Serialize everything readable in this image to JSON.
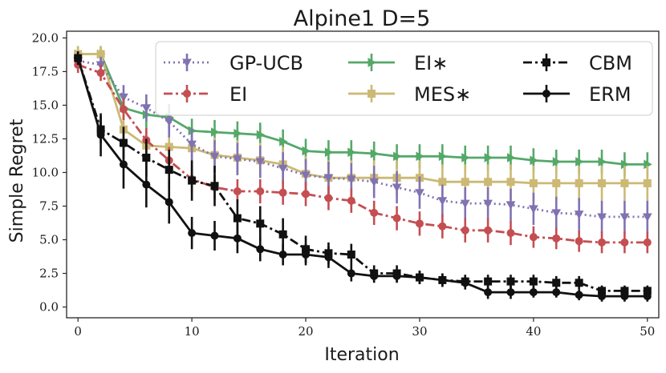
{
  "chart_data": {
    "type": "line",
    "title": "Alpine1 D=5",
    "xlabel": "Iteration",
    "ylabel": "Simple Regret",
    "xlim": [
      -1,
      51
    ],
    "ylim": [
      -0.8,
      20.5
    ],
    "xticks": [
      0,
      10,
      20,
      30,
      40,
      50
    ],
    "yticks": [
      0.0,
      2.5,
      5.0,
      7.5,
      10.0,
      12.5,
      15.0,
      17.5,
      20.0
    ],
    "xtick_labels": [
      "0",
      "10",
      "20",
      "30",
      "40",
      "50"
    ],
    "ytick_labels": [
      "0.0",
      "2.5",
      "5.0",
      "7.5",
      "10.0",
      "12.5",
      "15.0",
      "17.5",
      "20.0"
    ],
    "legend_position": "top-right",
    "x": [
      0,
      2,
      4,
      6,
      8,
      10,
      12,
      14,
      16,
      18,
      20,
      22,
      24,
      26,
      28,
      30,
      32,
      34,
      36,
      38,
      40,
      42,
      44,
      46,
      48,
      50
    ],
    "series": [
      {
        "name": "GP-UCB",
        "color": "#8172b2",
        "linestyle": "dotted",
        "marker": "triangle-down",
        "values": [
          18.3,
          18.0,
          15.6,
          14.8,
          13.8,
          12.1,
          11.2,
          11.0,
          10.8,
          10.3,
          9.8,
          9.6,
          9.5,
          9.3,
          8.9,
          8.5,
          7.9,
          7.7,
          7.7,
          7.6,
          7.3,
          7.0,
          6.9,
          6.7,
          6.7,
          6.7
        ],
        "errors": [
          0.6,
          0.6,
          0.9,
          1.0,
          1.2,
          1.2,
          1.2,
          1.2,
          1.2,
          1.2,
          1.2,
          1.2,
          1.2,
          1.2,
          1.2,
          1.2,
          1.2,
          1.2,
          1.2,
          1.2,
          1.2,
          1.2,
          1.2,
          1.2,
          1.2,
          1.2
        ]
      },
      {
        "name": "EI",
        "color": "#c44e52",
        "linestyle": "dashdot",
        "marker": "circle",
        "values": [
          18.0,
          17.4,
          14.7,
          12.4,
          10.9,
          9.5,
          8.9,
          8.6,
          8.6,
          8.5,
          8.4,
          8.1,
          7.9,
          7.0,
          6.6,
          6.2,
          6.0,
          5.7,
          5.7,
          5.5,
          5.2,
          5.1,
          4.9,
          4.8,
          4.8,
          4.8
        ],
        "errors": [
          0.6,
          0.6,
          0.8,
          0.9,
          1.0,
          1.0,
          0.9,
          0.9,
          0.9,
          0.9,
          0.9,
          0.9,
          0.9,
          0.9,
          0.9,
          0.9,
          0.9,
          0.9,
          0.9,
          0.9,
          0.8,
          0.8,
          0.8,
          0.8,
          0.8,
          0.8
        ]
      },
      {
        "name": "EI∗",
        "color": "#55a868",
        "linestyle": "solid",
        "marker": "triangle-right",
        "values": [
          18.8,
          18.8,
          14.8,
          14.3,
          14.1,
          13.1,
          13.0,
          12.9,
          12.8,
          12.3,
          11.6,
          11.5,
          11.5,
          11.4,
          11.2,
          11.2,
          11.2,
          11.1,
          11.1,
          11.1,
          10.9,
          10.8,
          10.8,
          10.8,
          10.6,
          10.6
        ],
        "errors": [
          0.6,
          0.6,
          0.9,
          1.0,
          1.0,
          0.9,
          0.9,
          0.9,
          0.9,
          0.9,
          0.9,
          0.9,
          0.9,
          0.9,
          0.9,
          0.9,
          0.9,
          0.9,
          0.9,
          0.9,
          0.9,
          0.9,
          0.9,
          0.9,
          0.9,
          0.9
        ]
      },
      {
        "name": "MES∗",
        "color": "#ccb974",
        "linestyle": "solid",
        "marker": "square",
        "values": [
          18.8,
          18.8,
          13.2,
          12.0,
          11.9,
          11.8,
          11.3,
          11.1,
          10.9,
          10.6,
          9.9,
          9.6,
          9.6,
          9.6,
          9.6,
          9.6,
          9.3,
          9.3,
          9.3,
          9.3,
          9.2,
          9.2,
          9.2,
          9.2,
          9.2,
          9.2
        ],
        "errors": [
          0.6,
          0.6,
          1.2,
          1.3,
          1.3,
          1.3,
          1.3,
          1.3,
          1.3,
          1.3,
          1.3,
          1.3,
          1.3,
          1.3,
          1.3,
          1.3,
          1.3,
          1.3,
          1.3,
          1.3,
          1.3,
          1.3,
          1.3,
          1.3,
          1.3,
          1.3
        ]
      },
      {
        "name": "CBM",
        "color": "#111111",
        "linestyle": "dashdot",
        "marker": "square",
        "values": [
          18.5,
          13.2,
          12.2,
          11.1,
          10.2,
          9.4,
          9.0,
          6.6,
          6.2,
          5.4,
          4.3,
          4.0,
          3.9,
          2.5,
          2.5,
          2.2,
          2.0,
          1.9,
          1.9,
          1.9,
          1.9,
          1.8,
          1.8,
          1.2,
          1.2,
          1.2
        ],
        "errors": [
          0.5,
          1.0,
          1.2,
          1.4,
          1.5,
          1.5,
          1.5,
          1.4,
          1.3,
          1.2,
          1.0,
          0.8,
          0.8,
          0.6,
          0.6,
          0.5,
          0.5,
          0.5,
          0.5,
          0.5,
          0.5,
          0.5,
          0.5,
          0.4,
          0.4,
          0.4
        ]
      },
      {
        "name": "ERM",
        "color": "#111111",
        "linestyle": "solid",
        "marker": "circle",
        "values": [
          18.5,
          12.8,
          10.6,
          9.1,
          7.8,
          5.5,
          5.3,
          5.1,
          4.3,
          3.9,
          3.9,
          3.7,
          2.5,
          2.3,
          2.3,
          2.2,
          2.0,
          1.8,
          1.1,
          1.1,
          1.1,
          1.1,
          0.9,
          0.8,
          0.8,
          0.8
        ],
        "errors": [
          0.5,
          1.6,
          1.8,
          1.7,
          1.6,
          1.2,
          1.1,
          1.1,
          0.9,
          0.8,
          0.8,
          0.8,
          0.6,
          0.5,
          0.5,
          0.5,
          0.5,
          0.5,
          0.5,
          0.5,
          0.4,
          0.4,
          0.4,
          0.4,
          0.4,
          0.4
        ]
      }
    ]
  }
}
